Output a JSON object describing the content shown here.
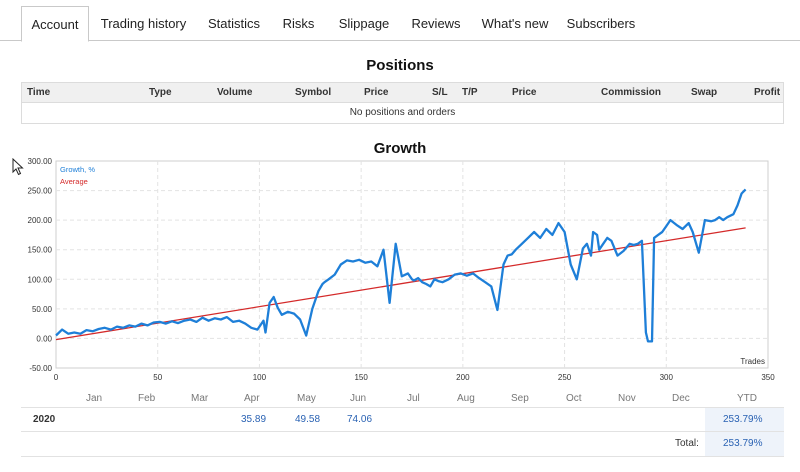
{
  "tabs": [
    {
      "label": "Account"
    },
    {
      "label": "Trading history"
    },
    {
      "label": "Statistics"
    },
    {
      "label": "Risks"
    },
    {
      "label": "Slippage"
    },
    {
      "label": "Reviews"
    },
    {
      "label": "What's new"
    },
    {
      "label": "Subscribers"
    }
  ],
  "positions": {
    "title": "Positions",
    "columns": [
      "Time",
      "Type",
      "Volume",
      "Symbol",
      "Price",
      "S/L",
      "T/P",
      "Price",
      "Commission",
      "Swap",
      "Profit"
    ],
    "empty_text": "No positions and orders"
  },
  "growth": {
    "title": "Growth"
  },
  "chart_data": {
    "type": "line",
    "legend": [
      "Growth, %",
      "Average"
    ],
    "legend_position": "top-left",
    "xlabel": "Trades",
    "ylabel": "",
    "xlim": [
      0,
      350
    ],
    "ylim": [
      -50,
      300
    ],
    "x_ticks": [
      "0",
      "50",
      "100",
      "150",
      "200",
      "250",
      "300",
      "350"
    ],
    "y_ticks": [
      "-50.00",
      "0.00",
      "50.00",
      "100.00",
      "150.00",
      "200.00",
      "250.00",
      "300.00"
    ],
    "grid": true,
    "colors": {
      "growth": "#1e7fd8",
      "average": "#d42a2a"
    },
    "series": [
      {
        "name": "Growth, %",
        "x": [
          0,
          3,
          6,
          9,
          12,
          15,
          18,
          21,
          24,
          27,
          30,
          33,
          36,
          39,
          42,
          45,
          48,
          51,
          54,
          57,
          60,
          63,
          66,
          69,
          72,
          75,
          78,
          81,
          84,
          87,
          90,
          93,
          96,
          99,
          102,
          103,
          105,
          107,
          109,
          111,
          114,
          117,
          120,
          123,
          126,
          129,
          131,
          132,
          134,
          137,
          140,
          143,
          146,
          149,
          152,
          155,
          158,
          161,
          164,
          167,
          170,
          173,
          175,
          176,
          178,
          180,
          182,
          184,
          186,
          188,
          190,
          193,
          196,
          199,
          202,
          205,
          208,
          211,
          214,
          217,
          220,
          222,
          224,
          226,
          229,
          232,
          235,
          238,
          241,
          244,
          247,
          250,
          253,
          256,
          259,
          261,
          263,
          264,
          266,
          267,
          269,
          271,
          273,
          276,
          279,
          282,
          284,
          286,
          288,
          290,
          291,
          293,
          294,
          296,
          298,
          300,
          302,
          305,
          308,
          311,
          313,
          316,
          319,
          322,
          324,
          326,
          328,
          330,
          333,
          335,
          337,
          339
        ],
        "y": [
          5,
          15,
          8,
          10,
          8,
          14,
          12,
          16,
          18,
          15,
          20,
          18,
          22,
          20,
          25,
          22,
          27,
          28,
          25,
          29,
          26,
          30,
          32,
          28,
          35,
          30,
          34,
          32,
          36,
          28,
          30,
          25,
          18,
          15,
          30,
          10,
          60,
          70,
          52,
          40,
          45,
          42,
          32,
          5,
          50,
          80,
          92,
          95,
          100,
          108,
          125,
          132,
          130,
          133,
          128,
          130,
          122,
          150,
          60,
          160,
          105,
          110,
          100,
          98,
          102,
          95,
          92,
          88,
          100,
          97,
          95,
          100,
          108,
          110,
          106,
          110,
          102,
          95,
          88,
          48,
          125,
          140,
          142,
          150,
          160,
          170,
          180,
          170,
          185,
          175,
          195,
          180,
          125,
          100,
          152,
          160,
          140,
          180,
          175,
          150,
          160,
          170,
          165,
          140,
          148,
          160,
          158,
          160,
          165,
          10,
          -5,
          -5,
          170,
          175,
          180,
          190,
          200,
          192,
          185,
          195,
          180,
          145,
          200,
          198,
          200,
          205,
          200,
          205,
          210,
          225,
          245,
          252
        ]
      },
      {
        "name": "Average",
        "x": [
          0,
          339
        ],
        "y": [
          -2,
          187
        ]
      }
    ]
  },
  "monthly": {
    "headers": [
      "Jan",
      "Feb",
      "Mar",
      "Apr",
      "May",
      "Jun",
      "Jul",
      "Aug",
      "Sep",
      "Oct",
      "Nov",
      "Dec",
      "YTD"
    ],
    "rows": [
      {
        "year": "2020",
        "values": [
          "",
          "",
          "",
          "35.89",
          "49.58",
          "74.06",
          "",
          "",
          "",
          "",
          "",
          ""
        ],
        "ytd": "253.79%"
      }
    ],
    "total_label": "Total:",
    "total_value": "253.79%"
  }
}
